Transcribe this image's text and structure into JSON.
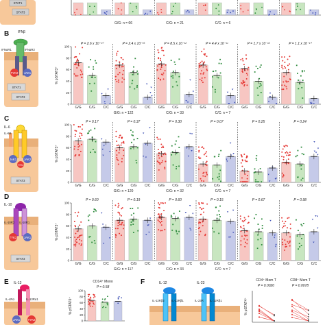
{
  "panel_top": {
    "label": "",
    "cell_items": [
      "STAT1",
      "STAT3"
    ],
    "counts": [
      "G/G: n = 66",
      "C/G: n = 21",
      "C/C: n = 6"
    ]
  },
  "panel_B": {
    "label": "B",
    "cytokine": "IFNβ",
    "receptors": [
      "IFNαR1",
      "IFNαR2"
    ],
    "kinases": [
      "TYK2",
      "JAK1"
    ],
    "stats": [
      "STAT1",
      "STAT3"
    ],
    "ylabel": "% pSTAT3⁺",
    "pvalues": [
      "P = 2.6 x 10⁻¹⁰",
      "P = 2.4 x 10⁻¹⁵",
      "P = 8.5 x 10⁻¹²",
      "P = 4.4 x 10⁻¹¹",
      "P = 1.7 x 10⁻¹²",
      "P = 1.1 x 10⁻¹⁰"
    ],
    "xticks": [
      "G/G",
      "C/G",
      "C/C"
    ],
    "counts": [
      "G/G: n = 122",
      "C/G: n = 33",
      "C/C: n = 7"
    ]
  },
  "panel_C": {
    "label": "C",
    "cytokine": "IL-6",
    "receptors": [
      "IL-6R",
      "gp130"
    ],
    "kinases": [
      "JAK1",
      "JAK2",
      "TYK2"
    ],
    "stats": [
      "STAT3"
    ],
    "ylabel": "% pSTAT3⁺",
    "pvalues": [
      "P = 0.17",
      "P = 0.37",
      "P = 0.30",
      "P = 0.07",
      "P = 0.25",
      "P = 0.24"
    ],
    "xticks": [
      "G/G",
      "C/G",
      "C/C"
    ],
    "counts": [
      "G/G: n = 120",
      "C/G: n = 32",
      "C/C: n = 7"
    ]
  },
  "panel_D": {
    "label": "D",
    "cytokine": "IL-10",
    "receptors": [
      "IL-10R2",
      "IL-10R1"
    ],
    "kinases": [
      "TYK2",
      "JAK1"
    ],
    "stats": [
      "STAT3"
    ],
    "ylabel": "% pSTAT3⁺",
    "pvalues": [
      "P = 0.60",
      "P = 0.19",
      "P = 0.60",
      "P = 0.15",
      "P = 0.67",
      "P = 0.98"
    ],
    "xticks": [
      "G/G",
      "C/G",
      "C/C"
    ],
    "counts": [
      "G/G: n = 117",
      "C/G: n = 33",
      "C/C: n = 7"
    ]
  },
  "panel_E": {
    "label": "E",
    "cytokine": "IL-13",
    "receptors": [
      "IL-4Rα",
      "IL-13Rα1"
    ],
    "kinases": [
      "JAK1",
      "TYK2"
    ],
    "subset": "CD14⁺ Mono",
    "ylabel": "% pSTAT6⁺",
    "pvalue": "P = 0.58"
  },
  "panel_F": {
    "label": "F",
    "cytokines": [
      "IL-12",
      "IL-23"
    ],
    "receptors": [
      "IL-12Rβ2",
      "IL-12Rβ1",
      "IL-23R",
      "IL-12Rβ1"
    ],
    "ylabel": "% pSTAT4⁺",
    "subsets": [
      "CD4⁺ Mem T",
      "CD8⁺ Mem T"
    ],
    "pvalues": [
      "P = 0.0020",
      "P = 0.0078"
    ]
  },
  "chart_data": [
    {
      "type": "bar",
      "title": "",
      "panel": "B",
      "ylabel": "% pSTAT3⁺",
      "ylim": [
        0,
        100
      ],
      "yticks": [
        0,
        20,
        40,
        60,
        80,
        100
      ],
      "groups": 6,
      "categories": [
        "G/G",
        "C/G",
        "C/C"
      ],
      "values": [
        [
          72,
          50,
          15
        ],
        [
          68,
          55,
          12
        ],
        [
          70,
          55,
          17
        ],
        [
          68,
          50,
          15
        ],
        [
          62,
          40,
          12
        ],
        [
          55,
          38,
          10
        ]
      ]
    },
    {
      "type": "bar",
      "title": "",
      "panel": "C",
      "ylabel": "% pSTAT3⁺",
      "ylim": [
        0,
        100
      ],
      "yticks": [
        0,
        20,
        40,
        60,
        80,
        100
      ],
      "groups": 6,
      "categories": [
        "G/G",
        "C/G",
        "C/C"
      ],
      "values": [
        [
          72,
          75,
          70
        ],
        [
          60,
          62,
          68
        ],
        [
          50,
          52,
          62
        ],
        [
          32,
          30,
          45
        ],
        [
          20,
          18,
          25
        ],
        [
          35,
          32,
          45
        ]
      ]
    },
    {
      "type": "bar",
      "title": "",
      "panel": "D",
      "ylabel": "% pSTAT3⁺",
      "ylim": [
        0,
        100
      ],
      "yticks": [
        0,
        20,
        40,
        60,
        80,
        100
      ],
      "groups": 6,
      "categories": [
        "G/G",
        "C/G",
        "C/C"
      ],
      "values": [
        [
          55,
          60,
          58
        ],
        [
          70,
          72,
          70
        ],
        [
          75,
          73,
          75
        ],
        [
          72,
          70,
          68
        ],
        [
          52,
          50,
          48
        ],
        [
          48,
          45,
          50
        ]
      ]
    },
    {
      "type": "bar",
      "title": "",
      "panel": "E",
      "ylabel": "% pSTAT6⁺",
      "yticks": [
        0,
        20,
        40,
        60,
        80,
        100
      ],
      "ylim": [
        0,
        100
      ],
      "categories": [
        "G/G",
        "C/G",
        "C/C"
      ],
      "values": [
        68,
        62,
        65
      ]
    }
  ]
}
